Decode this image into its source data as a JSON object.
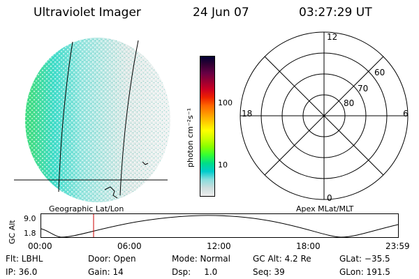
{
  "header": {
    "instrument": "Ultraviolet Imager",
    "date": "24 Jun 07",
    "time": "03:27:29 UT"
  },
  "left_panel": {
    "label": "Geographic Lat/Lon"
  },
  "colorbar": {
    "unit_label": "photon cm⁻²s⁻¹",
    "ticks": [
      "100",
      "10"
    ],
    "colors": [
      "#000033",
      "#330033",
      "#660044",
      "#990033",
      "#cc0022",
      "#ee2200",
      "#ff6600",
      "#ff9900",
      "#ffcc00",
      "#ffff00",
      "#ccff00",
      "#88ff00",
      "#33ff33",
      "#00dd88",
      "#00cccc",
      "#88dddd",
      "#ccdddd",
      "#eeeeee"
    ]
  },
  "polar_plot": {
    "label": "Apex MLat/MLT",
    "mlt_labels": {
      "top": "12",
      "left": "18",
      "right": "6",
      "bottom": "0"
    },
    "lat_labels": [
      "60",
      "70",
      "80"
    ]
  },
  "altitude_plot": {
    "ylabel": "GC Alt",
    "yticks": [
      "9.0",
      "1.8"
    ],
    "xticks": [
      "00:00",
      "06:00",
      "12:00",
      "18:00",
      "23:59"
    ],
    "marker_color": "#cc0000"
  },
  "status": {
    "flt": "Flt: LBHL",
    "ip": "IP: 36.0",
    "door": "Door: Open",
    "gain": "Gain: 14",
    "mode": "Mode: Normal",
    "dsp": "Dsp:     1.0",
    "gc_alt": "GC Alt: 4.2 Re",
    "seq": "Seq: 39",
    "glat": "GLat: −35.5",
    "glon": "GLon: 191.5"
  }
}
